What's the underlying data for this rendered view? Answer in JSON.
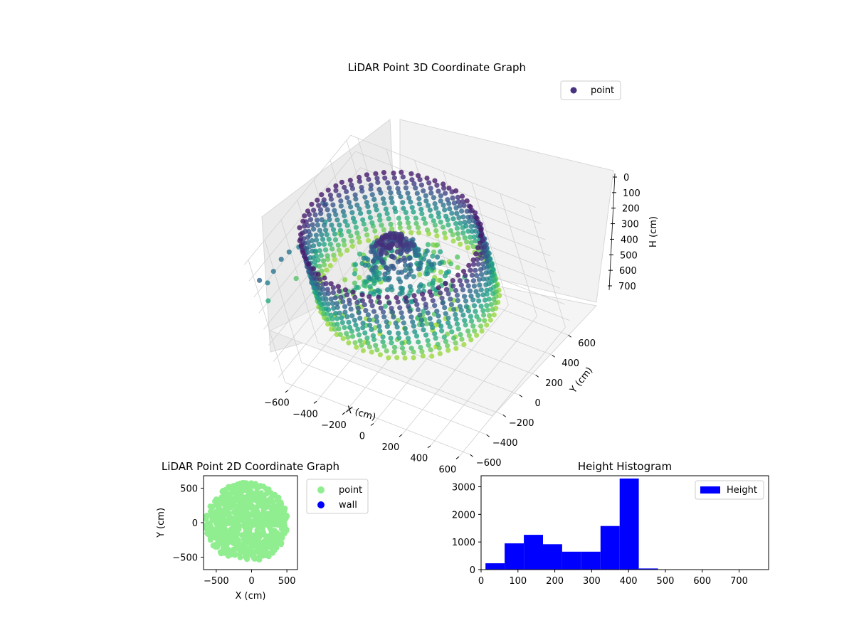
{
  "chart_data": [
    {
      "type": "scatter",
      "projection": "3d",
      "title": "LiDAR Point 3D Coordinate Graph",
      "xlabel": "X (cm)",
      "ylabel": "Y (cm)",
      "zlabel": "H (cm)",
      "xlim": [
        -650,
        650
      ],
      "ylim": [
        -650,
        650
      ],
      "zlim": [
        760,
        0
      ],
      "z_inverted": true,
      "xticks": [
        "−600",
        "−400",
        "−200",
        "0",
        "200",
        "400",
        "600"
      ],
      "yticks": [
        "−600",
        "−400",
        "−200",
        "0",
        "200",
        "400",
        "600"
      ],
      "zticks": [
        "0",
        "100",
        "200",
        "300",
        "400",
        "500",
        "600",
        "700"
      ],
      "colormap": "viridis",
      "legend": {
        "entries": [
          "point"
        ],
        "placement": "top-right"
      },
      "grid": true,
      "shape": "ring of vertical point columns, radius ≈ 550 cm, heights 0–430 cm, with a central cone of points and a few outliers at x ≈ −650",
      "series": [
        {
          "name": "point",
          "color": "#46327e"
        }
      ]
    },
    {
      "type": "scatter",
      "title": "LiDAR Point 2D Coordinate Graph",
      "xlabel": "X (cm)",
      "ylabel": "Y (cm)",
      "xlim": [
        -680,
        650
      ],
      "ylim": [
        -680,
        680
      ],
      "xticks": [
        "−500",
        "0",
        "500"
      ],
      "yticks": [
        "−500",
        "0",
        "500"
      ],
      "legend": {
        "entries": [
          "point",
          "wall"
        ],
        "placement": "outside-right"
      },
      "series": [
        {
          "name": "point",
          "color": "#90ee90",
          "shape": "filled disc, radius ≈ 580 cm, centred near (−70, 0), with a notch near (−250, −560)"
        },
        {
          "name": "wall",
          "color": "#0000ff",
          "values": []
        }
      ]
    },
    {
      "type": "bar",
      "subtype": "histogram",
      "title": "Height Histogram",
      "xlim": [
        0,
        780
      ],
      "ylim": [
        0,
        3400
      ],
      "xticks": [
        "0",
        "100",
        "200",
        "300",
        "400",
        "500",
        "600",
        "700"
      ],
      "yticks": [
        "0",
        "1000",
        "2000",
        "3000"
      ],
      "legend": {
        "entries": [
          "Height"
        ],
        "placement": "top-right"
      },
      "series": [
        {
          "name": "Height",
          "color": "#0000ff"
        }
      ],
      "bins": [
        {
          "x0": 12,
          "x1": 64,
          "value": 230
        },
        {
          "x0": 64,
          "x1": 116,
          "value": 950
        },
        {
          "x0": 116,
          "x1": 168,
          "value": 1260
        },
        {
          "x0": 168,
          "x1": 220,
          "value": 920
        },
        {
          "x0": 220,
          "x1": 272,
          "value": 650
        },
        {
          "x0": 272,
          "x1": 324,
          "value": 650
        },
        {
          "x0": 324,
          "x1": 376,
          "value": 1580
        },
        {
          "x0": 376,
          "x1": 428,
          "value": 3300
        },
        {
          "x0": 428,
          "x1": 480,
          "value": 40
        },
        {
          "x0": 480,
          "x1": 532,
          "value": 4
        },
        {
          "x0": 532,
          "x1": 584,
          "value": 2
        },
        {
          "x0": 584,
          "x1": 636,
          "value": 1
        },
        {
          "x0": 636,
          "x1": 688,
          "value": 1
        },
        {
          "x0": 688,
          "x1": 740,
          "value": 1
        },
        {
          "x0": 740,
          "x1": 780,
          "value": 1
        }
      ]
    }
  ]
}
